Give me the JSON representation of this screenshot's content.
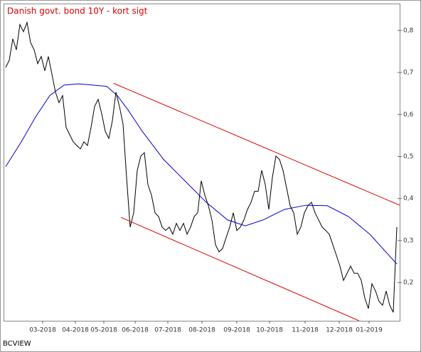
{
  "chart_data": {
    "type": "line",
    "title": "Danish govt. bond 10Y - kort sigt",
    "footer": "BCVIEW",
    "x": [
      0,
      1,
      2,
      3,
      4,
      5,
      6,
      7,
      8,
      9,
      10,
      11,
      12,
      13,
      14,
      15,
      16,
      17,
      18,
      19,
      20,
      21,
      22,
      23,
      24,
      25,
      26,
      27,
      28,
      29,
      30,
      31,
      32,
      33,
      34,
      35,
      36,
      37,
      38,
      39,
      40,
      41,
      42,
      43,
      44,
      45,
      46,
      47,
      48,
      49,
      50,
      51,
      52,
      53,
      54,
      55,
      56,
      57,
      58,
      59,
      60,
      61,
      62,
      63,
      64,
      65,
      66,
      67,
      68,
      69,
      70,
      71,
      72,
      73,
      74,
      75,
      76,
      77,
      78,
      79,
      80,
      81,
      82,
      83,
      84,
      85,
      86,
      87,
      88,
      89,
      90,
      91,
      92,
      93,
      94,
      95,
      96,
      97,
      98,
      99,
      100,
      101,
      102,
      103,
      104,
      105,
      106,
      107,
      108,
      109,
      110
    ],
    "series": [
      {
        "color": "#000000",
        "values": [
          0.712,
          0.729,
          0.78,
          0.754,
          0.814,
          0.797,
          0.819,
          0.771,
          0.754,
          0.721,
          0.738,
          0.704,
          0.738,
          0.696,
          0.653,
          0.628,
          0.645,
          0.569,
          0.552,
          0.535,
          0.526,
          0.518,
          0.535,
          0.526,
          0.569,
          0.619,
          0.636,
          0.602,
          0.56,
          0.543,
          0.585,
          0.653,
          0.619,
          0.577,
          0.45,
          0.332,
          0.366,
          0.467,
          0.501,
          0.509,
          0.433,
          0.408,
          0.366,
          0.357,
          0.332,
          0.324,
          0.332,
          0.315,
          0.341,
          0.324,
          0.341,
          0.315,
          0.332,
          0.357,
          0.366,
          0.442,
          0.408,
          0.383,
          0.349,
          0.29,
          0.273,
          0.281,
          0.307,
          0.332,
          0.366,
          0.324,
          0.332,
          0.349,
          0.374,
          0.391,
          0.417,
          0.417,
          0.467,
          0.433,
          0.374,
          0.45,
          0.501,
          0.493,
          0.467,
          0.425,
          0.383,
          0.366,
          0.315,
          0.332,
          0.366,
          0.383,
          0.391,
          0.366,
          0.349,
          0.332,
          0.324,
          0.315,
          0.29,
          0.265,
          0.239,
          0.205,
          0.222,
          0.239,
          0.222,
          0.222,
          0.205,
          0.163,
          0.138,
          0.197,
          0.18,
          0.155,
          0.146,
          0.18,
          0.146,
          0.129,
          0.332
        ]
      },
      {
        "color": "#0000cc",
        "x": [
          0,
          4.4,
          8.4,
          12.4,
          16.4,
          20.4,
          24.4,
          28.4,
          31.4,
          34.4,
          38.4,
          44.4,
          50.4,
          56.4,
          62.4,
          67.4,
          72.4,
          78.4,
          84.4,
          90.4,
          96.4,
          102.4,
          110
        ],
        "values": [
          0.476,
          0.535,
          0.594,
          0.645,
          0.67,
          0.673,
          0.67,
          0.667,
          0.645,
          0.611,
          0.56,
          0.493,
          0.442,
          0.391,
          0.349,
          0.335,
          0.349,
          0.374,
          0.384,
          0.383,
          0.357,
          0.315,
          0.244
        ]
      },
      {
        "color": "#dd0000",
        "x": [
          30.4,
          110.8
        ],
        "values": [
          0.674,
          0.384
        ]
      },
      {
        "color": "#dd0000",
        "x": [
          32.4,
          99.4
        ],
        "values": [
          0.355,
          0.109
        ]
      }
    ],
    "xlim": [
      -0.6,
      110.8
    ],
    "xticks": [
      {
        "value": 10.4,
        "label": "03-2018"
      },
      {
        "value": 19.6,
        "label": "04-2018"
      },
      {
        "value": 27.6,
        "label": "05-2018"
      },
      {
        "value": 36.4,
        "label": "06-2018"
      },
      {
        "value": 45.6,
        "label": "07-2018"
      },
      {
        "value": 55.2,
        "label": "08-2018"
      },
      {
        "value": 65,
        "label": "09-2018"
      },
      {
        "value": 74.2,
        "label": "10-2018"
      },
      {
        "value": 84.2,
        "label": "11-2018"
      },
      {
        "value": 93.8,
        "label": "12-2018"
      },
      {
        "value": 102.2,
        "label": "01-2019"
      }
    ],
    "ylim": [
      0.109,
      0.864
    ],
    "yticks": [
      {
        "value": 0.2,
        "label": "0,2"
      },
      {
        "value": 0.3,
        "label": "0,3"
      },
      {
        "value": 0.4,
        "label": "0,4"
      },
      {
        "value": 0.5,
        "label": "0,5"
      },
      {
        "value": 0.6,
        "label": "0,6"
      },
      {
        "value": 0.7,
        "label": "0,7"
      },
      {
        "value": 0.8,
        "label": "0,8"
      }
    ]
  }
}
